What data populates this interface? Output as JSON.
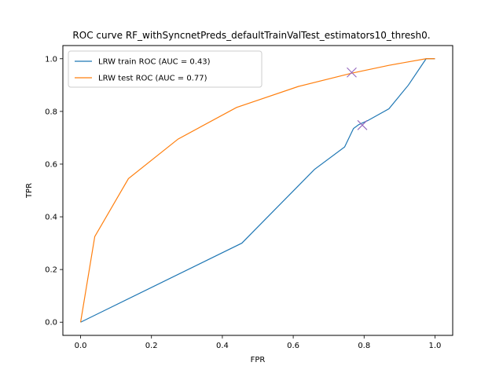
{
  "chart_data": {
    "type": "line",
    "title": "ROC curve RF_withSyncnetPreds_defaultTrainValTest_estimators10_thresh0.",
    "xlabel": "FPR",
    "ylabel": "TPR",
    "xlim": [
      -0.05,
      1.05
    ],
    "ylim": [
      -0.05,
      1.05
    ],
    "xticks": [
      0.0,
      0.2,
      0.4,
      0.6,
      0.8,
      1.0
    ],
    "yticks": [
      0.0,
      0.2,
      0.4,
      0.6,
      0.8,
      1.0
    ],
    "tick_labels_x": [
      "0.0",
      "0.2",
      "0.4",
      "0.6",
      "0.8",
      "1.0"
    ],
    "tick_labels_y": [
      "0.0",
      "0.2",
      "0.4",
      "0.6",
      "0.8",
      "1.0"
    ],
    "grid": false,
    "legend_position": "top-left",
    "series": [
      {
        "name": "LRW train ROC (AUC = 0.43)",
        "color": "#1f77b4",
        "x": [
          0.0,
          0.455,
          0.66,
          0.745,
          0.77,
          0.785,
          0.81,
          0.87,
          0.925,
          0.975,
          1.0
        ],
        "y": [
          0.0,
          0.3,
          0.58,
          0.665,
          0.735,
          0.75,
          0.765,
          0.81,
          0.9,
          1.0,
          1.0
        ]
      },
      {
        "name": "LRW test ROC (AUC = 0.77)",
        "color": "#ff7f0e",
        "x": [
          0.0,
          0.04,
          0.135,
          0.275,
          0.44,
          0.615,
          0.765,
          0.87,
          0.975,
          1.0
        ],
        "y": [
          0.0,
          0.325,
          0.545,
          0.695,
          0.815,
          0.895,
          0.945,
          0.975,
          1.0,
          1.0
        ]
      }
    ],
    "markers": [
      {
        "series": "LRW test ROC (AUC = 0.77)",
        "x": 0.765,
        "y": 0.948,
        "symbol": "x",
        "color": "#9467bd"
      },
      {
        "series": "LRW train ROC (AUC = 0.43)",
        "x": 0.795,
        "y": 0.748,
        "symbol": "x",
        "color": "#9467bd"
      }
    ]
  }
}
